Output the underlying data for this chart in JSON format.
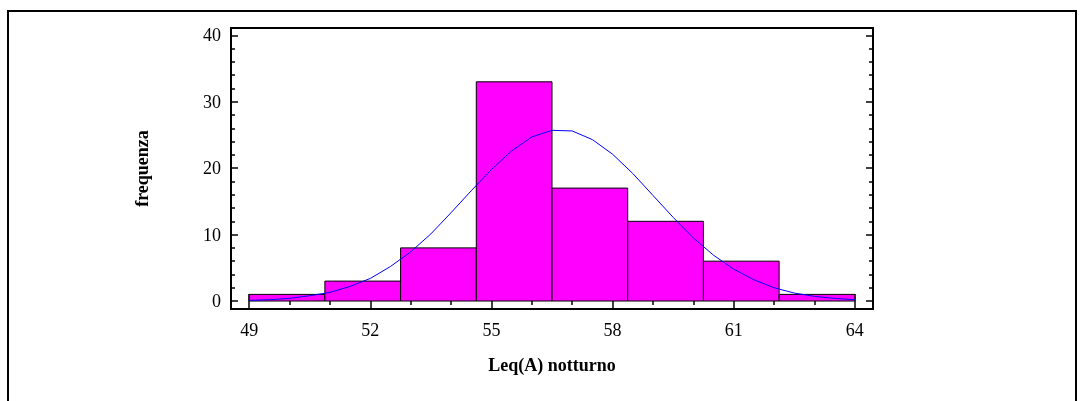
{
  "chart_data": {
    "type": "histogram",
    "xlabel": "Leq(A) notturno",
    "ylabel": "frequenza",
    "bins": [
      49,
      50.875,
      52.75,
      54.625,
      56.5,
      58.375,
      60.25,
      62.125,
      64
    ],
    "series": [
      {
        "color": "#ff00ff",
        "values": [
          1,
          3,
          8,
          33,
          17,
          12,
          6,
          1
        ]
      },
      {
        "type": "line",
        "color": "#0000ff",
        "x": [
          49,
          49.5,
          50,
          50.5,
          51,
          51.5,
          52,
          52.5,
          53,
          53.5,
          54,
          54.5,
          55,
          55.5,
          56,
          56.5,
          57,
          57.5,
          58,
          58.5,
          59,
          59.5,
          60,
          60.5,
          61,
          61.5,
          62,
          62.5,
          63,
          63.5,
          64
        ],
        "values": [
          0.1,
          0.2,
          0.4,
          0.8,
          1.3,
          2.2,
          3.4,
          5.2,
          7.4,
          10.1,
          13.3,
          16.6,
          19.8,
          22.6,
          24.7,
          25.7,
          25.6,
          24.3,
          22.1,
          19.2,
          15.9,
          12.6,
          9.5,
          6.9,
          4.8,
          3.2,
          2.0,
          1.2,
          0.7,
          0.4,
          0.2
        ]
      }
    ],
    "xlim": [
      48.55,
      64.45
    ],
    "xticks": [
      49,
      52,
      55,
      58,
      61,
      64
    ],
    "ylim": [
      -1.2,
      41.1
    ],
    "yticks": [
      0,
      10,
      20,
      30,
      40
    ],
    "grid": false
  }
}
